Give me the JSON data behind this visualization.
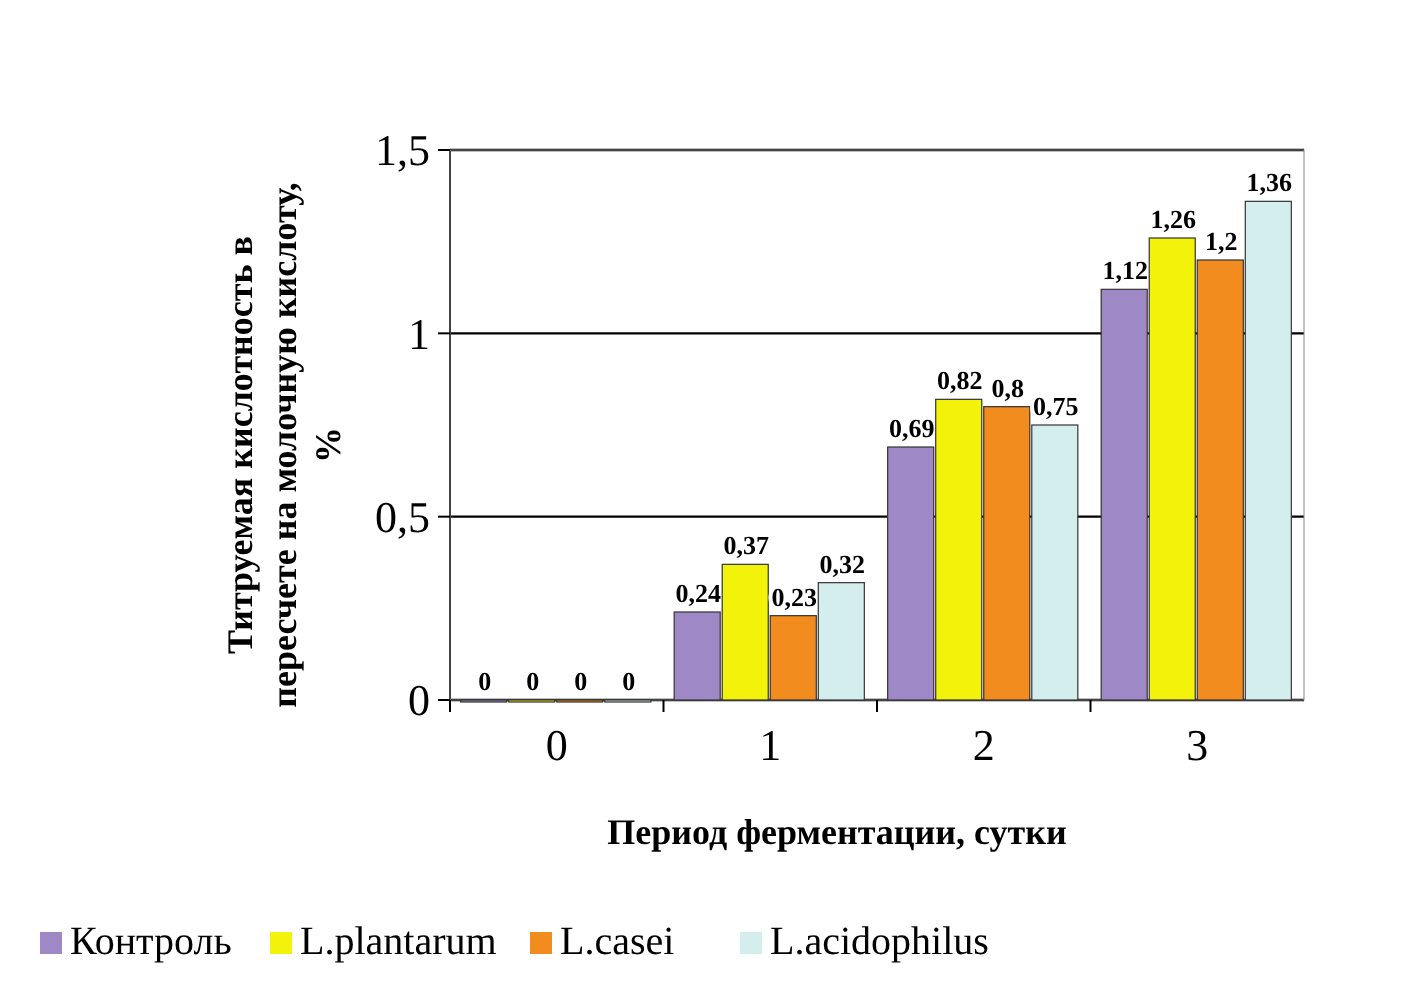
{
  "chart_data": {
    "type": "bar",
    "xlabel": "Период ферментации, сутки",
    "ylabel": "Титруемая кислотность в пересчете на молочную кислоту, %",
    "categories": [
      "0",
      "1",
      "2",
      "3"
    ],
    "series": [
      {
        "name": "Контроль",
        "color": "#9f88c6",
        "values": [
          0,
          0.24,
          0.69,
          1.12
        ],
        "value_labels": [
          "0",
          "0,24",
          "0,69",
          "1,12"
        ]
      },
      {
        "name": "L.plantarum",
        "color": "#f2f20a",
        "values": [
          0,
          0.37,
          0.82,
          1.26
        ],
        "value_labels": [
          "0",
          "0,37",
          "0,82",
          "1,26"
        ]
      },
      {
        "name": "L.casei",
        "color": "#f28c1e",
        "values": [
          0,
          0.23,
          0.8,
          1.2
        ],
        "value_labels": [
          "0",
          "0,23",
          "0,8",
          "1,2"
        ]
      },
      {
        "name": "L.acidophilus",
        "color": "#d4eeee",
        "values": [
          0,
          0.32,
          0.75,
          1.36
        ],
        "value_labels": [
          "0",
          "0,32",
          "0,75",
          "1,36"
        ]
      }
    ],
    "ylim": [
      0,
      1.5
    ],
    "yticks": [
      {
        "value": 0,
        "label": "0"
      },
      {
        "value": 0.5,
        "label": "0,5"
      },
      {
        "value": 1,
        "label": "1"
      },
      {
        "value": 1.5,
        "label": "1,5"
      }
    ],
    "grid": "y",
    "legend": "bottom"
  }
}
